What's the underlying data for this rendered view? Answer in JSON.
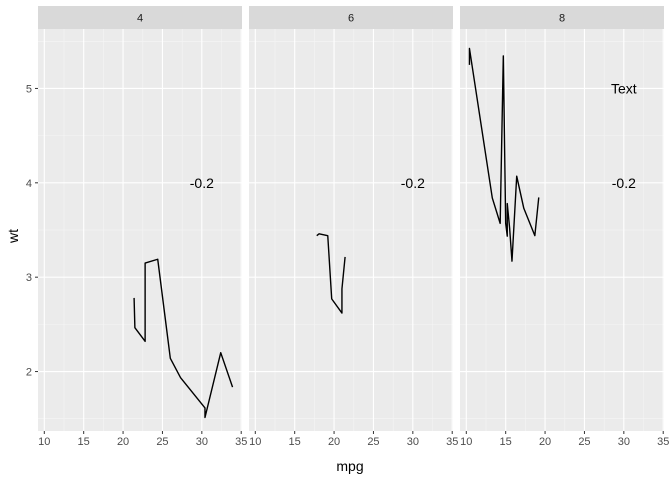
{
  "chart_data": {
    "type": "line",
    "xlabel": "mpg",
    "ylabel": "wt",
    "xlim": [
      9.2,
      35.1
    ],
    "ylim": [
      1.37,
      5.63
    ],
    "x_ticks": [
      10,
      15,
      20,
      25,
      30,
      35
    ],
    "y_ticks": [
      2,
      3,
      4,
      5
    ],
    "grid": true,
    "colors": {
      "panel_bg": "#ebebeb",
      "grid_major": "#ffffff",
      "grid_minor": "#f5f5f5",
      "strip_bg": "#d9d9d9",
      "line": "#000000",
      "tick": "#333333"
    },
    "facets": [
      {
        "label": "4",
        "x": [
          21.4,
          21.5,
          22.8,
          22.8,
          24.4,
          26.0,
          27.3,
          30.4,
          30.4,
          32.4,
          33.9
        ],
        "y": [
          2.78,
          2.465,
          2.32,
          3.15,
          3.19,
          2.14,
          1.935,
          1.615,
          1.513,
          2.2,
          1.835
        ],
        "annotations": [
          {
            "text": "-0.2",
            "x": 30.0,
            "y": 4.0
          }
        ]
      },
      {
        "label": "6",
        "x": [
          17.8,
          18.1,
          19.2,
          19.7,
          21.0,
          21.0,
          21.4
        ],
        "y": [
          3.44,
          3.46,
          3.44,
          2.77,
          2.62,
          2.875,
          3.215
        ],
        "annotations": [
          {
            "text": "-0.2",
            "x": 30.0,
            "y": 4.0
          }
        ]
      },
      {
        "label": "8",
        "x": [
          10.4,
          10.4,
          13.3,
          14.3,
          14.7,
          15.0,
          15.2,
          15.2,
          15.5,
          15.8,
          16.4,
          17.3,
          18.7,
          19.2
        ],
        "y": [
          5.25,
          5.424,
          3.84,
          3.57,
          5.345,
          3.57,
          3.435,
          3.78,
          3.52,
          3.17,
          4.07,
          3.73,
          3.44,
          3.845
        ],
        "annotations": [
          {
            "text": "Text",
            "x": 30.0,
            "y": 5.0
          },
          {
            "text": "-0.2",
            "x": 30.0,
            "y": 4.0
          }
        ]
      }
    ]
  }
}
